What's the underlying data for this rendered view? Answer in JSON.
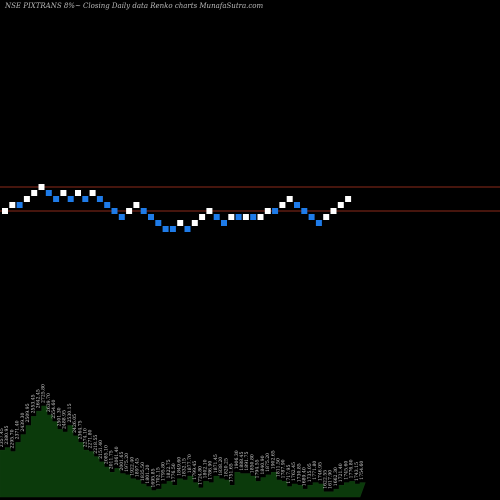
{
  "header": {
    "title": "NSE PIXTRANS 8%~  Closing Daily data  Renko  charts MunafaSutra.com"
  },
  "colors": {
    "background": "#000000",
    "up_brick": "#ffffff",
    "down_brick": "#1e7be8",
    "reference_line": "#8b2a1a",
    "volume_fill": "#0b3a0b",
    "volume_line": "#123c12"
  },
  "chart_data": {
    "type": "renko",
    "title": "NSE PIXTRANS 8%~  Closing Daily data  Renko  charts MunafaSutra.com",
    "brick_size_note": "8%",
    "grid": false,
    "reference_lines_price_levels": [
      2297,
      1943
    ],
    "bricks": [
      {
        "dir": "up",
        "level": 0
      },
      {
        "dir": "up",
        "level": 1
      },
      {
        "dir": "down",
        "level": 1
      },
      {
        "dir": "up",
        "level": 2
      },
      {
        "dir": "up",
        "level": 3
      },
      {
        "dir": "up",
        "level": 4
      },
      {
        "dir": "down",
        "level": 3
      },
      {
        "dir": "down",
        "level": 2
      },
      {
        "dir": "up",
        "level": 3
      },
      {
        "dir": "down",
        "level": 2
      },
      {
        "dir": "up",
        "level": 3
      },
      {
        "dir": "down",
        "level": 2
      },
      {
        "dir": "up",
        "level": 3
      },
      {
        "dir": "down",
        "level": 2
      },
      {
        "dir": "down",
        "level": 1
      },
      {
        "dir": "down",
        "level": 0
      },
      {
        "dir": "down",
        "level": -1
      },
      {
        "dir": "up",
        "level": 0
      },
      {
        "dir": "up",
        "level": 1
      },
      {
        "dir": "down",
        "level": 0
      },
      {
        "dir": "down",
        "level": -1
      },
      {
        "dir": "down",
        "level": -2
      },
      {
        "dir": "down",
        "level": -3
      },
      {
        "dir": "down",
        "level": -3
      },
      {
        "dir": "up",
        "level": -2
      },
      {
        "dir": "down",
        "level": -3
      },
      {
        "dir": "up",
        "level": -2
      },
      {
        "dir": "up",
        "level": -1
      },
      {
        "dir": "up",
        "level": 0
      },
      {
        "dir": "down",
        "level": -1
      },
      {
        "dir": "down",
        "level": -2
      },
      {
        "dir": "up",
        "level": -1
      },
      {
        "dir": "down",
        "level": -1
      },
      {
        "dir": "up",
        "level": -1
      },
      {
        "dir": "down",
        "level": -1
      },
      {
        "dir": "up",
        "level": -1
      },
      {
        "dir": "up",
        "level": 0
      },
      {
        "dir": "down",
        "level": 0
      },
      {
        "dir": "up",
        "level": 1
      },
      {
        "dir": "up",
        "level": 2
      },
      {
        "dir": "down",
        "level": 1
      },
      {
        "dir": "down",
        "level": 0
      },
      {
        "dir": "down",
        "level": -1
      },
      {
        "dir": "down",
        "level": -2
      },
      {
        "dir": "up",
        "level": -1
      },
      {
        "dir": "up",
        "level": 0
      },
      {
        "dir": "up",
        "level": 1
      },
      {
        "dir": "up",
        "level": 2
      }
    ],
    "volume_panel": {
      "labels": [
        "2357.45",
        "2380.95",
        "2295.70",
        "2371.40",
        "2439.30",
        "2509.95",
        "2553.45",
        "2642.45",
        "2725.80",
        "2639.70",
        "2554.60",
        "2501.30",
        "2488.95",
        "2530.15",
        "2426.05",
        "2364.75",
        "2274.10",
        "2271.80",
        "2218.55",
        "2151.40",
        "2085.10",
        "2011.75",
        "2061.40",
        "2001.65",
        "1975.20",
        "1922.40",
        "1897.45",
        "1835.50",
        "1801.20",
        "1695.85",
        "1702.15",
        "1795.80",
        "1822.75",
        "1776.50",
        "1849.60",
        "1832.15",
        "1877.70",
        "1799.45",
        "1724.80",
        "1802.10",
        "1786.90",
        "1871.45",
        "1838.20",
        "1820.25",
        "1751.65",
        "1906.30",
        "1888.45",
        "1891.75",
        "1850.80",
        "1794.55",
        "1840.90",
        "1875.20",
        "1902.65",
        "1811.50",
        "1787.90",
        "1717.95",
        "1762.45",
        "1730.85",
        "1689.40",
        "1735.05",
        "1771.80",
        "1746.95",
        "1622.55",
        "1617.90",
        "1662.30",
        "1721.40",
        "1745.60",
        "1776.80",
        "1743.15",
        "1754.60"
      ],
      "heights": [
        0.36,
        0.38,
        0.35,
        0.42,
        0.48,
        0.55,
        0.62,
        0.66,
        0.7,
        0.63,
        0.58,
        0.52,
        0.5,
        0.55,
        0.47,
        0.42,
        0.36,
        0.35,
        0.31,
        0.27,
        0.23,
        0.19,
        0.22,
        0.18,
        0.17,
        0.14,
        0.13,
        0.1,
        0.08,
        0.05,
        0.06,
        0.1,
        0.12,
        0.09,
        0.14,
        0.13,
        0.16,
        0.11,
        0.07,
        0.12,
        0.11,
        0.16,
        0.14,
        0.13,
        0.09,
        0.19,
        0.18,
        0.18,
        0.16,
        0.12,
        0.15,
        0.17,
        0.19,
        0.13,
        0.12,
        0.08,
        0.1,
        0.09,
        0.06,
        0.09,
        0.11,
        0.1,
        0.04,
        0.04,
        0.06,
        0.09,
        0.11,
        0.12,
        0.1,
        0.11
      ]
    }
  }
}
